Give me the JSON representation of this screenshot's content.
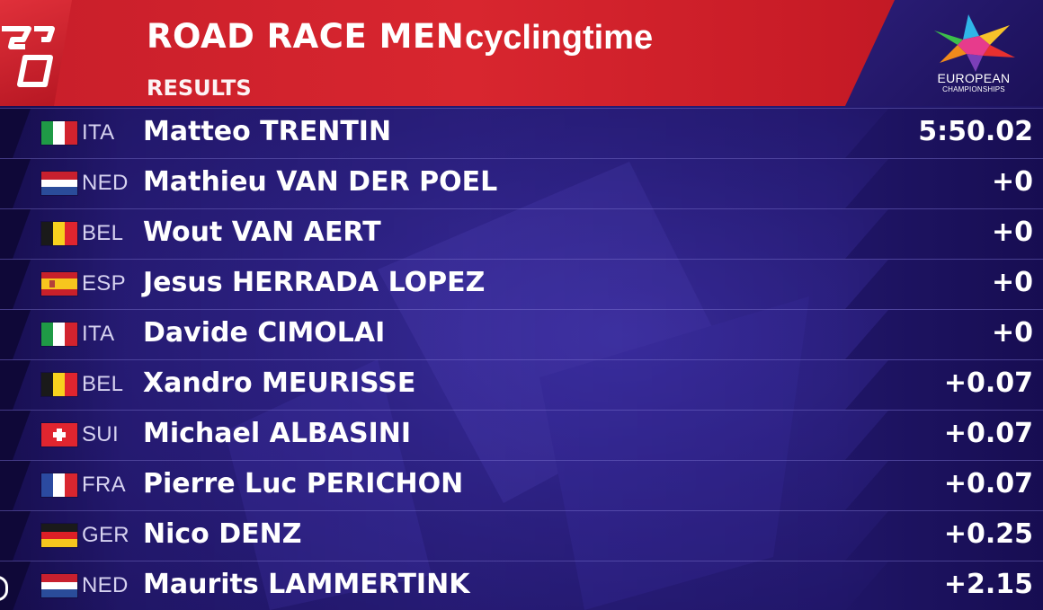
{
  "header": {
    "title": "ROAD RACE MEN",
    "subtitle": "RESULTS",
    "watermark": "cyclingtime",
    "logo": {
      "line1": "EUROPEAN",
      "line2": "CHAMPIONSHIPS",
      "icon": "european-championships-star-logo"
    },
    "left_logo_icon": "broadcaster-logo"
  },
  "colors": {
    "header_red": "#d8262f",
    "background_purple": "#2a1f7e",
    "row_line": "#9690e6",
    "text": "#ffffff"
  },
  "results": [
    {
      "flag": "ITA",
      "nat": "ITA",
      "rider": "Matteo TRENTIN",
      "time": "5:50.02"
    },
    {
      "flag": "NED",
      "nat": "NED",
      "rider": "Mathieu VAN DER POEL",
      "time": "+0"
    },
    {
      "flag": "BEL",
      "nat": "BEL",
      "rider": "Wout VAN AERT",
      "time": "+0"
    },
    {
      "flag": "ESP",
      "nat": "ESP",
      "rider": "Jesus HERRADA LOPEZ",
      "time": "+0"
    },
    {
      "flag": "ITA",
      "nat": "ITA",
      "rider": "Davide CIMOLAI",
      "time": "+0"
    },
    {
      "flag": "BEL",
      "nat": "BEL",
      "rider": "Xandro MEURISSE",
      "time": "+0.07"
    },
    {
      "flag": "SUI",
      "nat": "SUI",
      "rider": "Michael ALBASINI",
      "time": "+0.07"
    },
    {
      "flag": "FRA",
      "nat": "FRA",
      "rider": "Pierre Luc PERICHON",
      "time": "+0.07"
    },
    {
      "flag": "GER",
      "nat": "GER",
      "rider": "Nico DENZ",
      "time": "+0.25"
    },
    {
      "flag": "NED",
      "nat": "NED",
      "rider": "Maurits LAMMERTINK",
      "time": "+2.15"
    }
  ]
}
